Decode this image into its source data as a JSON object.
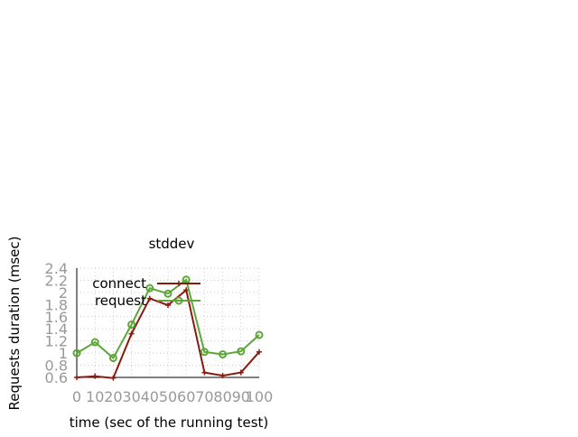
{
  "chart_data": {
    "type": "line",
    "title": "stddev",
    "xlabel": "time (sec of the running test)",
    "ylabel": "Requests duration (msec)",
    "x": [
      0,
      10,
      20,
      30,
      40,
      50,
      60,
      70,
      80,
      90,
      100
    ],
    "x_ticks": [
      "0",
      "10",
      "20",
      "30",
      "40",
      "50",
      "60",
      "70",
      "80",
      "90",
      "100"
    ],
    "y_ticks": [
      "0.6",
      "0.8",
      "1",
      "1.2",
      "1.4",
      "1.6",
      "1.8",
      "2",
      "2.2",
      "2.4"
    ],
    "xlim": [
      0,
      100
    ],
    "ylim": [
      0.6,
      2.4
    ],
    "grid": true,
    "legend_position": "top-center",
    "series": [
      {
        "name": "connect",
        "color": "#8b1a0e",
        "marker": "plus",
        "values": [
          0.6,
          0.62,
          0.59,
          1.32,
          1.9,
          1.79,
          2.04,
          0.68,
          0.63,
          0.68,
          1.02
        ]
      },
      {
        "name": "request",
        "color": "#5ea63a",
        "marker": "circle",
        "values": [
          1.0,
          1.18,
          0.92,
          1.47,
          2.07,
          1.98,
          2.21,
          1.02,
          0.98,
          1.03,
          1.3
        ]
      }
    ]
  }
}
